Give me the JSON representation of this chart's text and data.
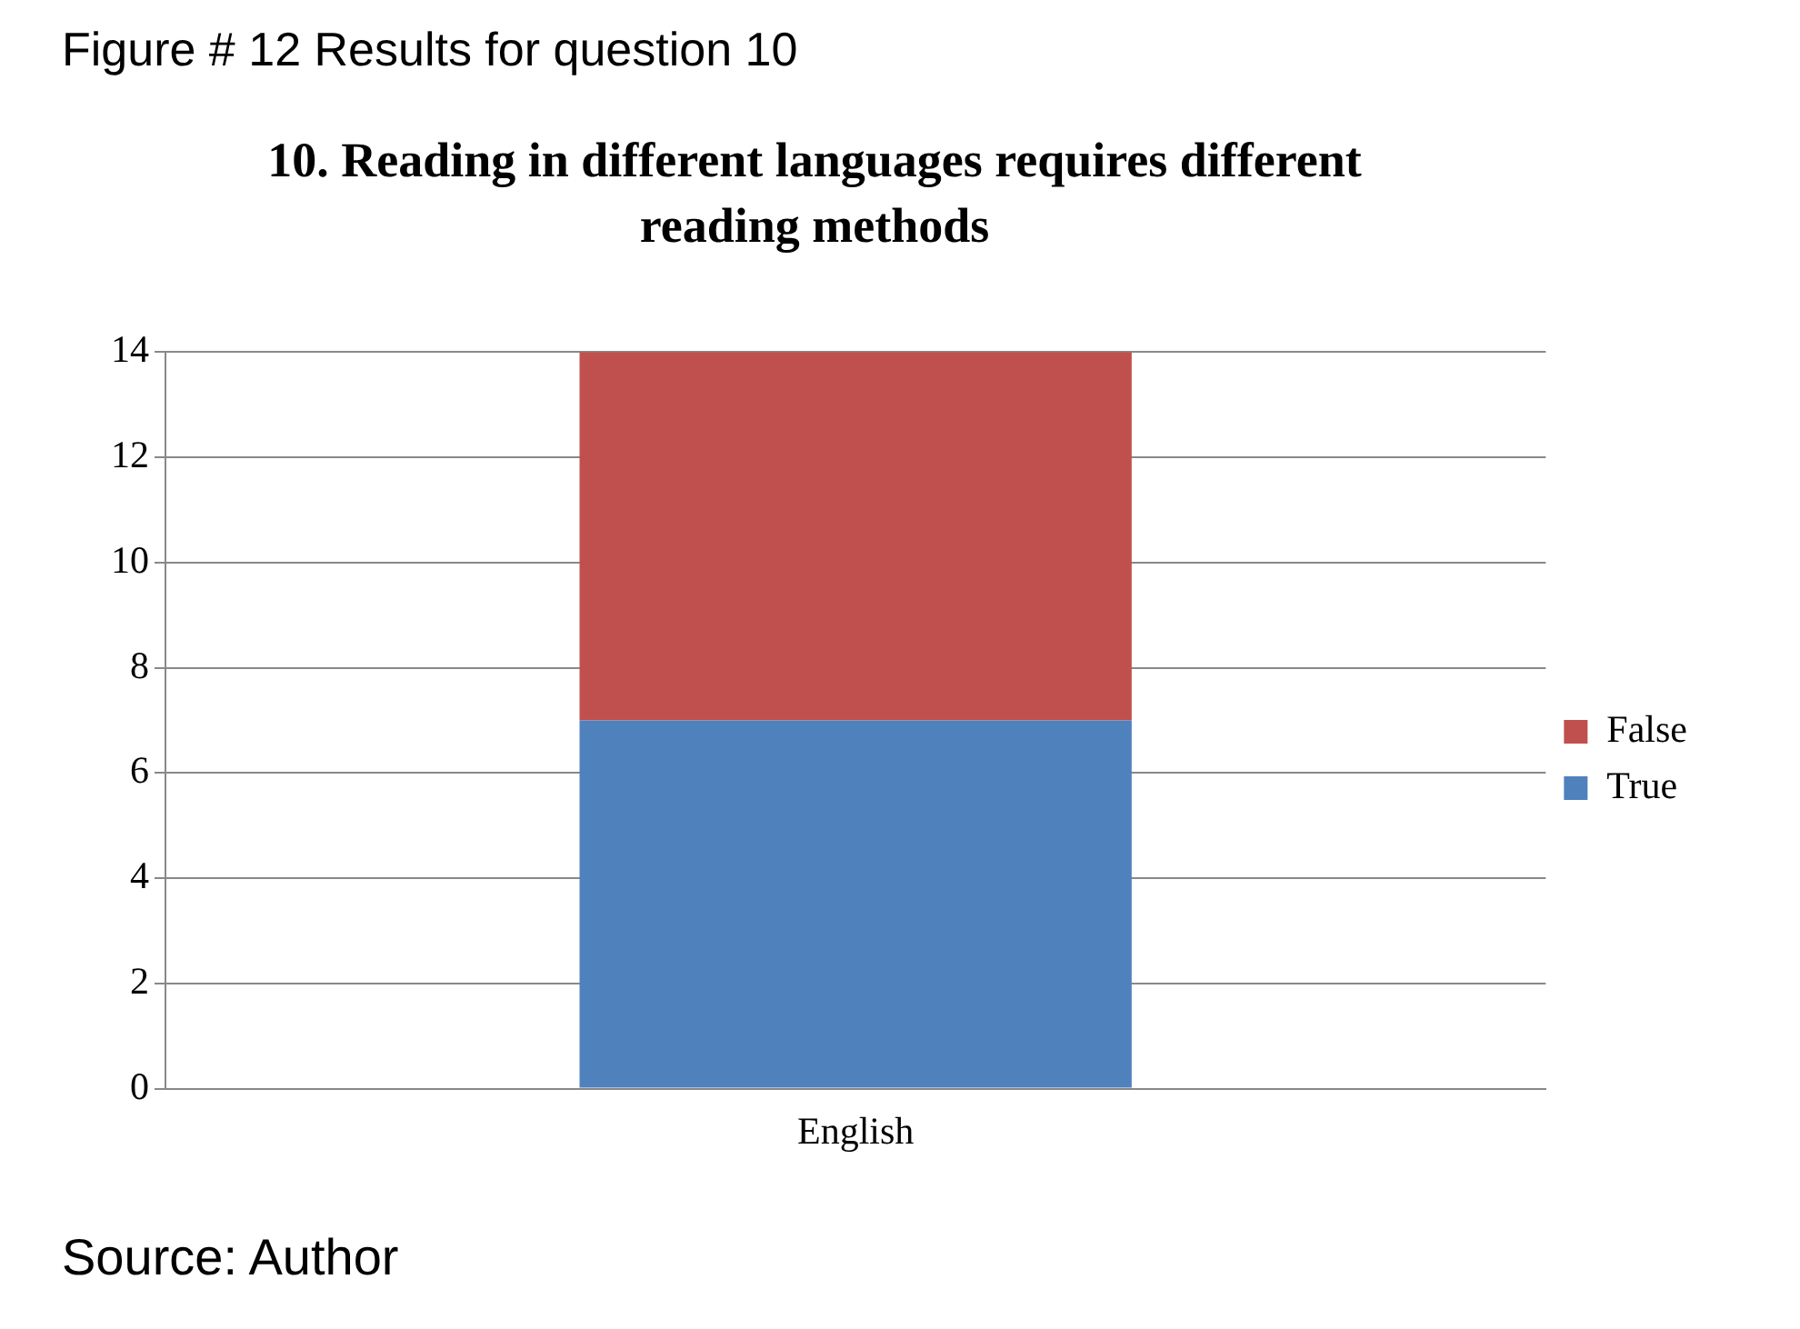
{
  "chart_data": {
    "type": "bar",
    "title": "10. Reading in different languages requires different reading methods",
    "annotations": [
      "Figure # 12 Results for question 10",
      "Source: Author"
    ],
    "categories": [
      "English"
    ],
    "stacked": true,
    "series": [
      {
        "name": "True",
        "color": "#4f81bd",
        "values": [
          7
        ]
      },
      {
        "name": "False",
        "color": "#c0504d",
        "values": [
          7
        ]
      }
    ],
    "ylim": [
      0,
      14
    ],
    "yticks": [
      0,
      2,
      4,
      6,
      8,
      10,
      12,
      14
    ],
    "grid": "y",
    "legend": "right"
  }
}
